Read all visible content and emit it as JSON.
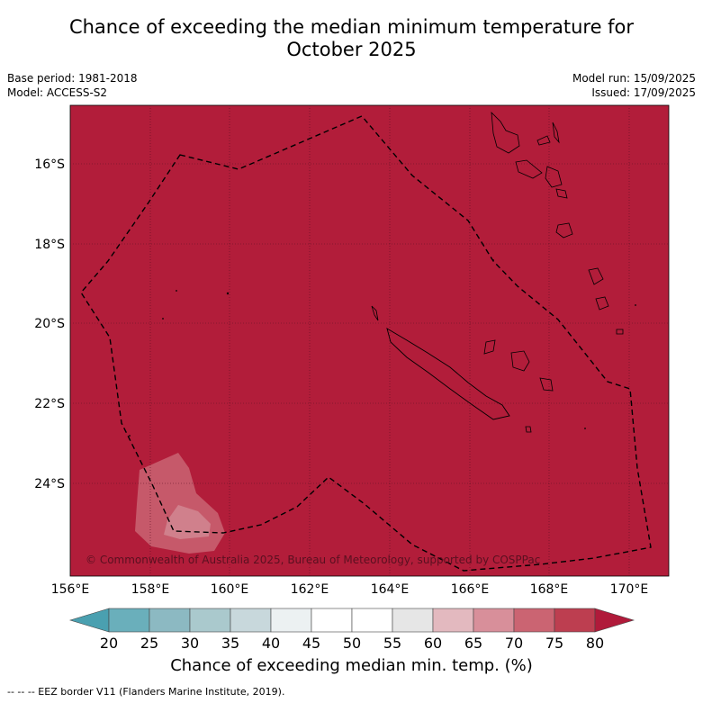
{
  "title": {
    "line1": "Chance of exceeding the median minimum temperature for",
    "line2": "October 2025"
  },
  "meta": {
    "base_period": "Base period: 1981-2018",
    "model": "Model: ACCESS-S2",
    "model_run": "Model run: 15/09/2025",
    "issued": "Issued: 17/09/2025"
  },
  "map": {
    "background_color": "#b21d3a",
    "latitudes": [
      "16°S",
      "18°S",
      "20°S",
      "22°S",
      "24°S"
    ],
    "longitudes": [
      "156°E",
      "158°E",
      "160°E",
      "162°E",
      "164°E",
      "166°E",
      "168°E",
      "170°E"
    ],
    "copyright": "© Commonwealth of Australia 2025, Bureau of Meteorology, supported by COSPPac"
  },
  "colorbar": {
    "ticks": [
      "20",
      "25",
      "30",
      "35",
      "40",
      "45",
      "50",
      "55",
      "60",
      "65",
      "70",
      "75",
      "80"
    ],
    "colors": [
      "#4aa0b0",
      "#6aafbb",
      "#8cb9c2",
      "#aac9cd",
      "#c8d8dc",
      "#ecf1f2",
      "#ffffff",
      "#ffffff",
      "#e6e6e6",
      "#e3b9bf",
      "#d88f9a",
      "#cb6472",
      "#bd3e50",
      "#b01a3a"
    ],
    "label": "Chance of exceeding median min. temp. (%)"
  },
  "legend_note": "--  --  -- EEZ border V11 (Flanders Marine Institute, 2019)."
}
